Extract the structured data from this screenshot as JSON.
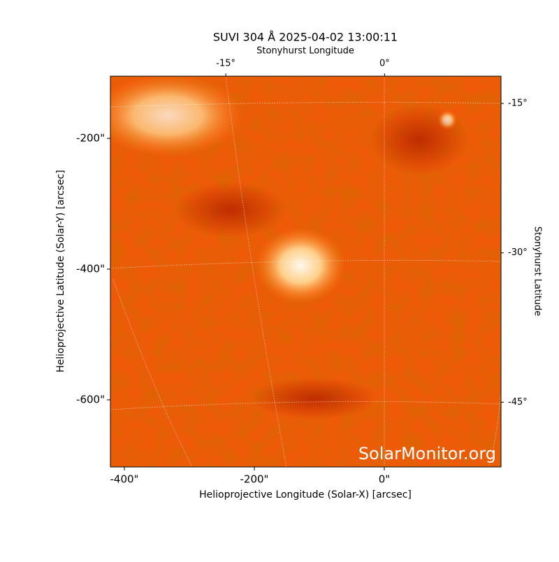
{
  "chart_data": {
    "type": "image",
    "title": "SUVI 304 Å 2025-04-02 13:00:11",
    "xlabel": "Helioprojective Longitude (Solar-X) [arcsec]",
    "ylabel": "Helioprojective Latitude (Solar-Y) [arcsec]",
    "x2label": "Stonyhurst Longitude",
    "y2label": "Stonyhurst Latitude",
    "watermark": "SolarMonitor.org",
    "xlim": [
      -421.5,
      179.6
    ],
    "ylim": [
      -702.7,
      -104.8
    ],
    "xticks": [
      {
        "value": -400,
        "label": "-400\""
      },
      {
        "value": -200,
        "label": "-200\""
      },
      {
        "value": 0,
        "label": "0\""
      }
    ],
    "yticks": [
      {
        "value": -200,
        "label": "-200\""
      },
      {
        "value": -400,
        "label": "-400\""
      },
      {
        "value": -600,
        "label": "-600\""
      }
    ],
    "x2lim": [
      -25.9,
      11.0
    ],
    "x2ticks": [
      {
        "value": -15,
        "label": "-15°"
      },
      {
        "value": 0,
        "label": "0°"
      }
    ],
    "y2lim": [
      -51.5,
      -12.26
    ],
    "y2ticks": [
      {
        "value": -15,
        "label": "-15°"
      },
      {
        "value": -30,
        "label": "-30°"
      },
      {
        "value": -45,
        "label": "-45°"
      }
    ]
  }
}
